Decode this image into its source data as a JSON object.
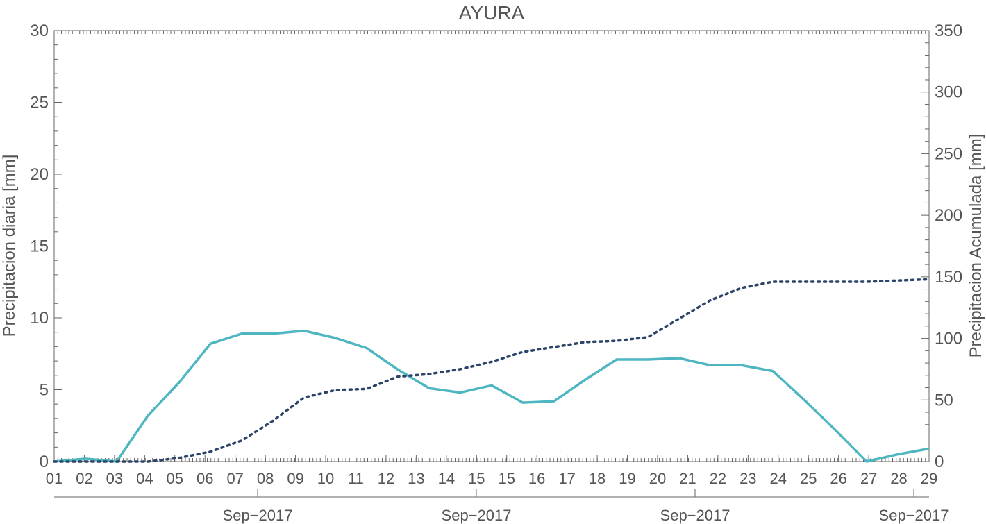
{
  "chart_data": {
    "type": "line",
    "title": "AYURA",
    "ylabel_left": "Precipitacion diaria [mm]",
    "ylabel_right": "Precipitacion Acumulada [mm]",
    "ylim_left": [
      0,
      30
    ],
    "ylim_right": [
      0,
      350
    ],
    "yticks_left": [
      "0",
      "5",
      "10",
      "15",
      "20",
      "25",
      "30"
    ],
    "yticks_right": [
      "0",
      "50",
      "100",
      "150",
      "200",
      "250",
      "300",
      "350"
    ],
    "x_tick_labels": [
      "01",
      "02",
      "03",
      "04",
      "05",
      "06",
      "07",
      "08",
      "09",
      "10",
      "11",
      "12",
      "13",
      "14",
      "15",
      "15",
      "16",
      "17",
      "18",
      "19",
      "20",
      "21",
      "22",
      "23",
      "24",
      "25",
      "26",
      "27",
      "28",
      "29"
    ],
    "x_month_labels": [
      "Sep−2017",
      "Sep−2017",
      "Sep−2017",
      "Sep−2017"
    ],
    "grid": false,
    "series": [
      {
        "axis": "left",
        "style": "solid",
        "color": "#4db6c1",
        "values": [
          0.0,
          0.2,
          0.0,
          3.2,
          5.5,
          8.2,
          8.9,
          8.9,
          9.1,
          8.6,
          7.9,
          6.4,
          5.1,
          4.8,
          5.3,
          4.1,
          4.2,
          5.7,
          7.1,
          7.1,
          7.2,
          6.7,
          6.7,
          6.3,
          4.3,
          2.2,
          0.0,
          0.5,
          0.9
        ]
      },
      {
        "axis": "right",
        "style": "dotted",
        "color": "#2b4468",
        "values": [
          0,
          0,
          0,
          0,
          3,
          8,
          17,
          33,
          52,
          58,
          59,
          69,
          71,
          75,
          81,
          89,
          93,
          97,
          98,
          101,
          116,
          131,
          141,
          146,
          146,
          146,
          146,
          147,
          148
        ]
      }
    ]
  }
}
